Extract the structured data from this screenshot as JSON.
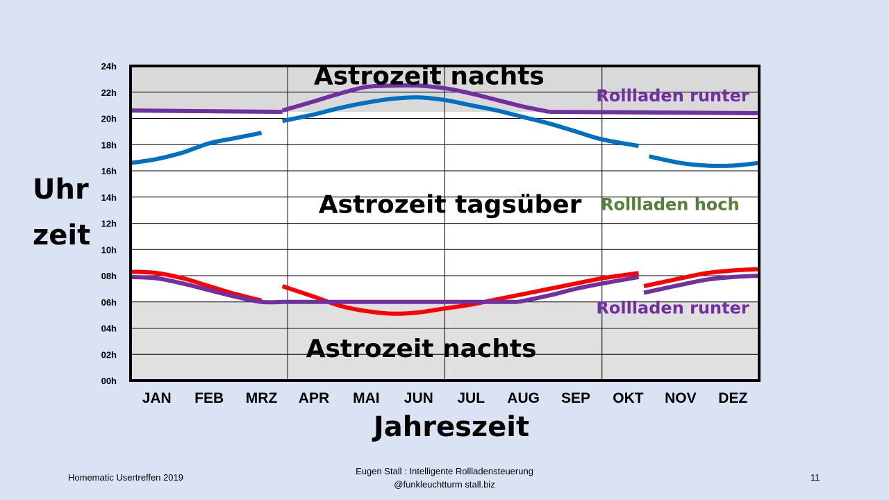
{
  "chart_data": {
    "type": "line",
    "categories": [
      "JAN",
      "FEB",
      "MRZ",
      "APR",
      "MAI",
      "JUN",
      "JUL",
      "AUG",
      "SEP",
      "OKT",
      "NOV",
      "DEZ"
    ],
    "y_ticks": [
      "00h",
      "02h",
      "04h",
      "06h",
      "08h",
      "10h",
      "12h",
      "14h",
      "16h",
      "18h",
      "20h",
      "22h",
      "24h"
    ],
    "ylim": [
      0,
      24
    ],
    "ylabel_lines": [
      "Uhr",
      "zeit"
    ],
    "xlabel": "Jahreszeit",
    "grid": true,
    "series": [
      {
        "color": "#0070c0",
        "segments": [
          [
            [
              0,
              16.6
            ],
            [
              0.5,
              16.9
            ],
            [
              1,
              17.4
            ],
            [
              1.5,
              18.1
            ],
            [
              2,
              18.5
            ],
            [
              2.5,
              18.9
            ]
          ],
          [
            [
              2.9,
              19.8
            ],
            [
              3.5,
              20.3
            ],
            [
              4,
              20.8
            ],
            [
              4.5,
              21.2
            ],
            [
              5,
              21.5
            ],
            [
              5.5,
              21.6
            ],
            [
              6,
              21.4
            ],
            [
              6.5,
              21.0
            ],
            [
              7,
              20.6
            ],
            [
              7.5,
              20.1
            ],
            [
              8,
              19.6
            ],
            [
              8.5,
              19.0
            ],
            [
              9,
              18.4
            ],
            [
              9.7,
              17.9
            ]
          ],
          [
            [
              9.9,
              17.1
            ],
            [
              10.5,
              16.6
            ],
            [
              11,
              16.4
            ],
            [
              11.5,
              16.4
            ],
            [
              12,
              16.6
            ]
          ]
        ]
      },
      {
        "color": "#7030a0",
        "segments": [
          [
            [
              0,
              20.6
            ],
            [
              2.9,
              20.5
            ]
          ],
          [
            [
              2.9,
              20.6
            ],
            [
              3.5,
              21.3
            ],
            [
              4,
              21.9
            ],
            [
              4.5,
              22.4
            ],
            [
              5,
              22.5
            ],
            [
              5.5,
              22.5
            ],
            [
              6,
              22.3
            ],
            [
              6.5,
              21.9
            ],
            [
              7,
              21.4
            ],
            [
              7.5,
              20.9
            ],
            [
              8,
              20.5
            ]
          ],
          [
            [
              8,
              20.5
            ],
            [
              12,
              20.4
            ]
          ]
        ]
      },
      {
        "color": "#ff0000",
        "segments": [
          [
            [
              0,
              8.3
            ],
            [
              0.5,
              8.2
            ],
            [
              1,
              7.8
            ],
            [
              1.5,
              7.2
            ],
            [
              2,
              6.6
            ],
            [
              2.5,
              6.1
            ]
          ],
          [
            [
              2.9,
              7.2
            ],
            [
              3.5,
              6.4
            ],
            [
              4,
              5.7
            ],
            [
              4.5,
              5.3
            ],
            [
              5,
              5.1
            ],
            [
              5.5,
              5.2
            ],
            [
              6,
              5.5
            ],
            [
              6.5,
              5.8
            ],
            [
              7,
              6.2
            ],
            [
              7.5,
              6.6
            ],
            [
              8,
              7.0
            ],
            [
              8.5,
              7.4
            ],
            [
              9,
              7.8
            ],
            [
              9.7,
              8.2
            ]
          ],
          [
            [
              9.8,
              7.2
            ],
            [
              10.5,
              7.8
            ],
            [
              11,
              8.2
            ],
            [
              11.5,
              8.4
            ],
            [
              12,
              8.5
            ]
          ]
        ]
      },
      {
        "color": "#7030a0",
        "segments": [
          [
            [
              0,
              7.9
            ],
            [
              0.5,
              7.8
            ],
            [
              1,
              7.4
            ],
            [
              1.5,
              6.9
            ],
            [
              2,
              6.4
            ],
            [
              2.5,
              6.0
            ],
            [
              2.9,
              6.0
            ]
          ],
          [
            [
              2.9,
              6.0
            ],
            [
              7.4,
              6.0
            ]
          ],
          [
            [
              7.4,
              6.0
            ],
            [
              8,
              6.5
            ],
            [
              8.5,
              7.0
            ],
            [
              9,
              7.4
            ],
            [
              9.7,
              7.9
            ]
          ],
          [
            [
              9.8,
              6.7
            ],
            [
              10.5,
              7.3
            ],
            [
              11,
              7.7
            ],
            [
              11.5,
              7.9
            ],
            [
              12,
              8.0
            ]
          ]
        ]
      }
    ],
    "annotations": [
      {
        "text": "Astrozeit nachts",
        "x": 5.7,
        "y": 22.6,
        "color": "#000000"
      },
      {
        "text": "Astrozeit tagsüber",
        "x": 6.1,
        "y": 12.8,
        "color": "#000000"
      },
      {
        "text": "Rollladen runter",
        "x": 10.35,
        "y": 21.3,
        "color": "#7030a0"
      },
      {
        "text": "Rollladen hoch",
        "x": 10.3,
        "y": 13.0,
        "color": "#538135"
      },
      {
        "text": "Rollladen runter",
        "x": 10.35,
        "y": 5.1,
        "color": "#7030a0"
      },
      {
        "text": "Astrozeit nachts",
        "x": 5.55,
        "y": 1.8,
        "color": "#000000"
      }
    ],
    "shading": [
      {
        "from": 20.5,
        "to": 24,
        "color": "#d9d9d9"
      },
      {
        "from": 0,
        "to": 6,
        "color": "#e0e0e0"
      }
    ]
  },
  "footer": {
    "left": "Homematic Usertreffen  2019",
    "center_line1": "Eugen Stall :  Intelligente Rollladensteuerung",
    "center_line2": "@funkleuchtturm    stall.biz",
    "page_number": "11"
  }
}
